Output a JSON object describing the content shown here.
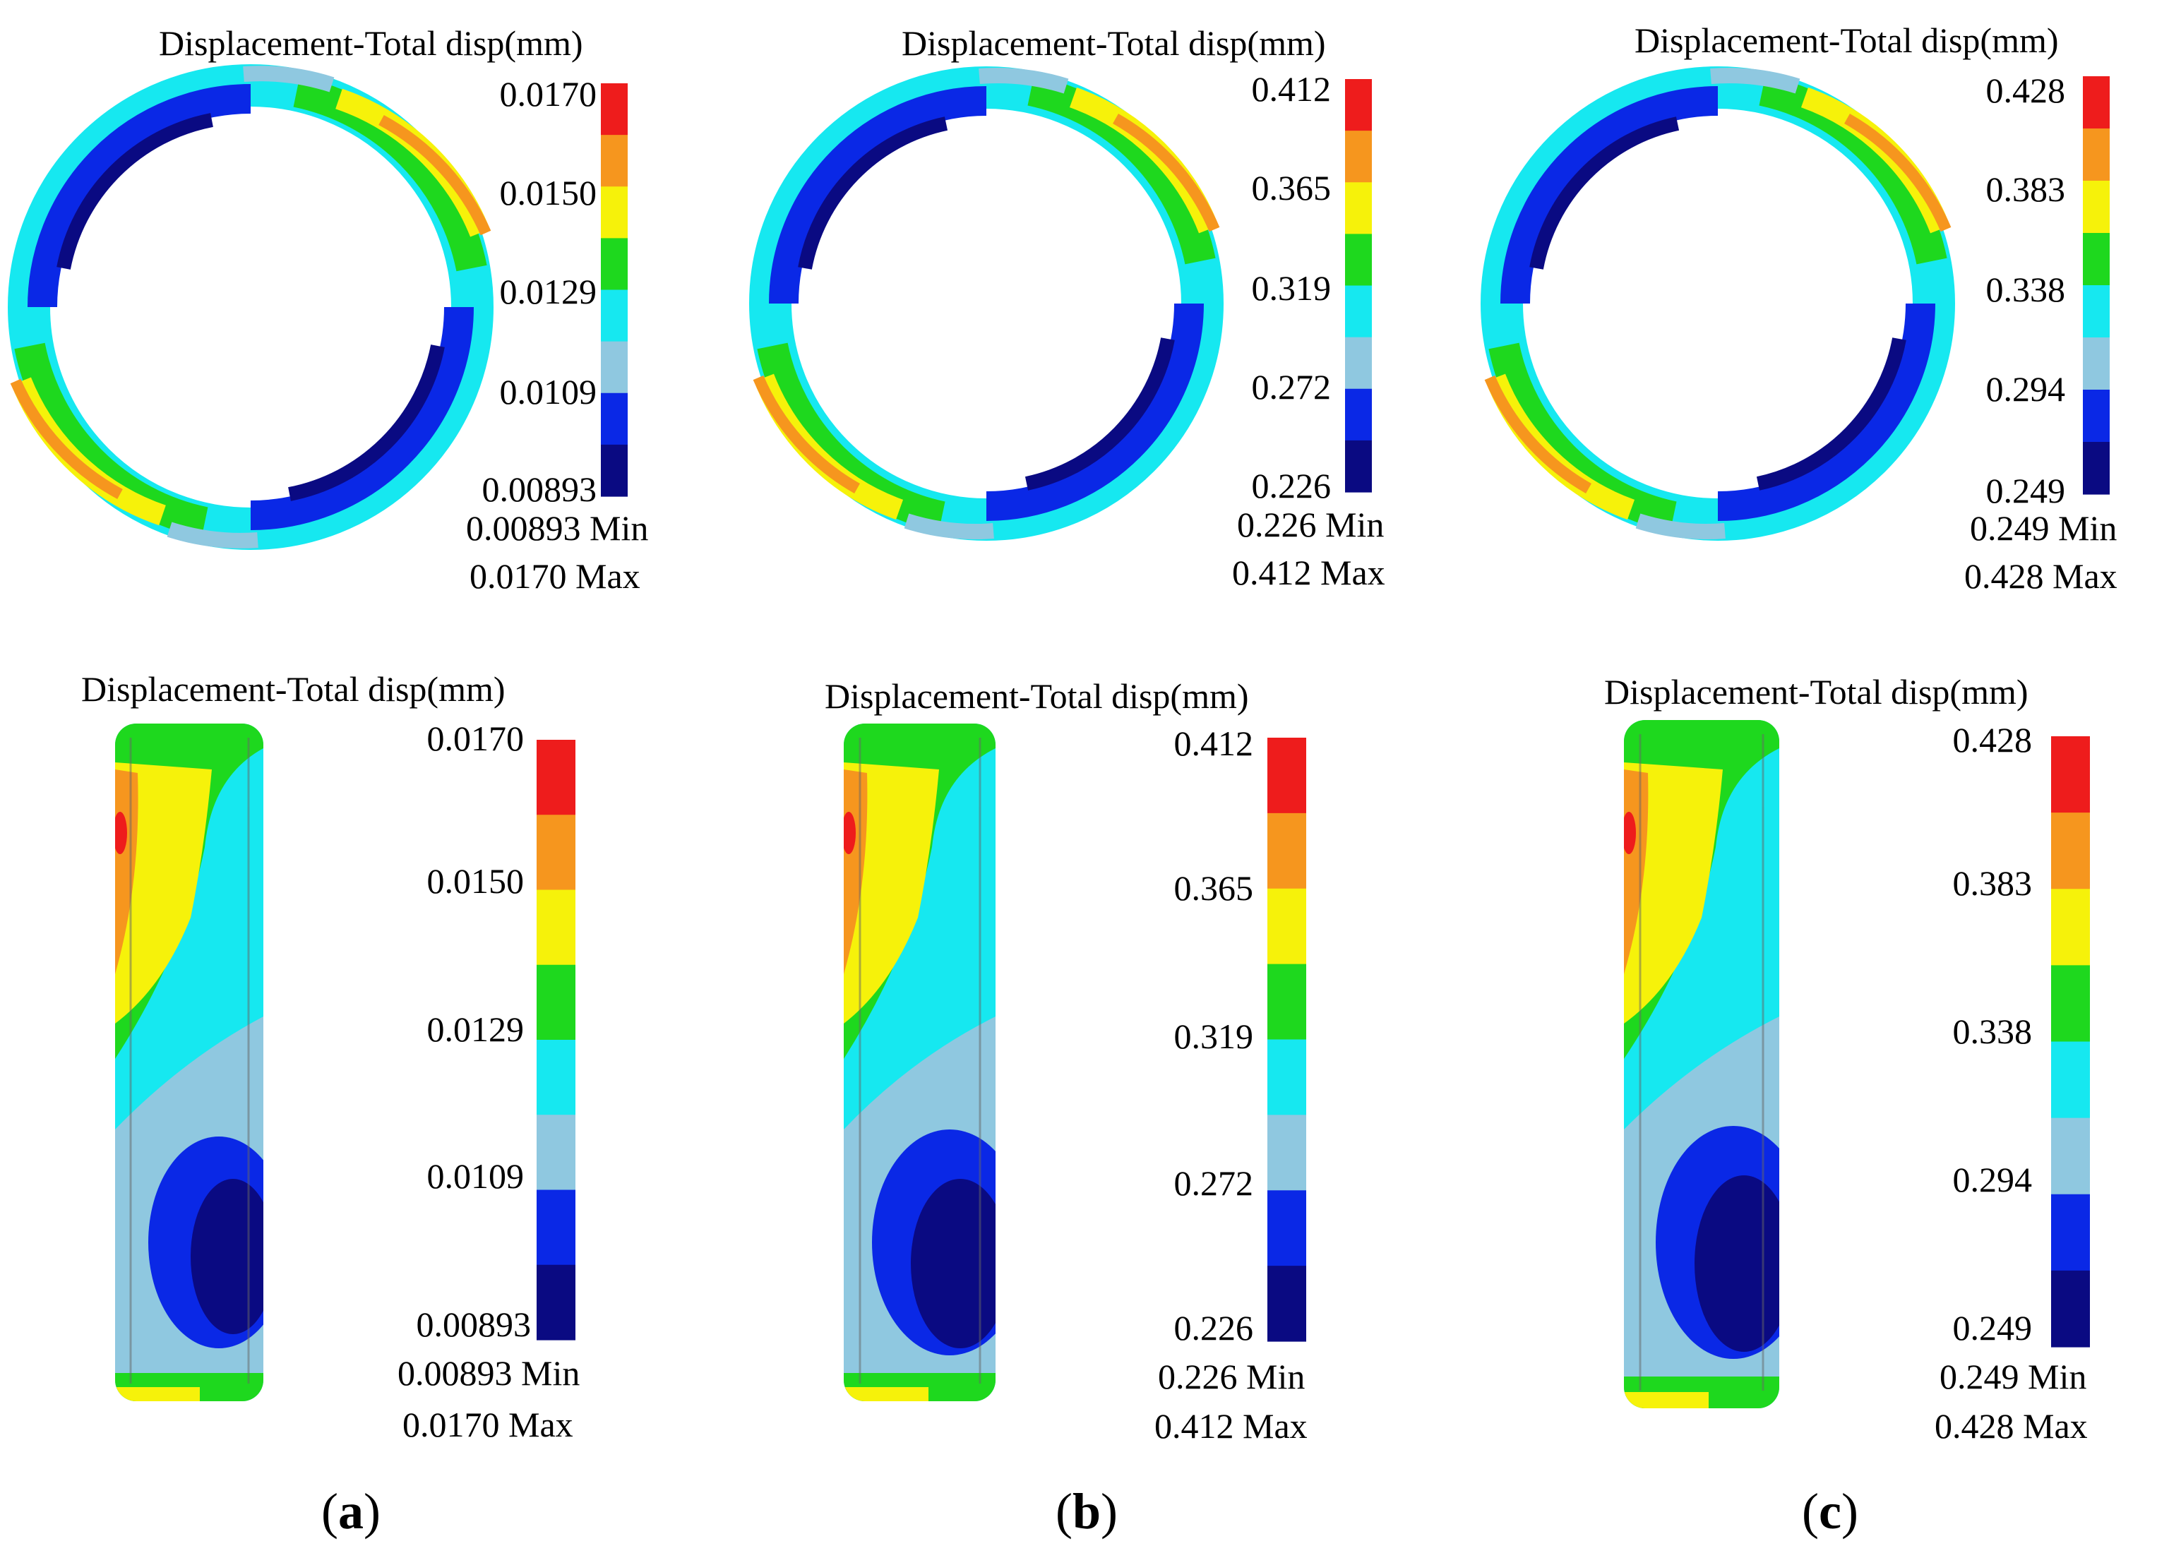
{
  "figure": {
    "background": "#ffffff",
    "colormap": [
      "#0a0a82",
      "#0a28e6",
      "#8fc8e0",
      "#16e8f0",
      "#1ed81e",
      "#f6f20a",
      "#f6961e",
      "#ee1c1c"
    ],
    "panels": [
      {
        "letter": "a",
        "min_label": "0.00893",
        "max_label": "0.0170",
        "ticks": [
          "0.0170",
          "0.0150",
          "0.0129",
          "0.0109",
          "0.00893"
        ],
        "min_caption": "0.00893 Min",
        "max_caption": "0.0170 Max"
      },
      {
        "letter": "b",
        "min_label": "0.226",
        "max_label": "0.412",
        "ticks": [
          "0.412",
          "0.365",
          "0.319",
          "0.272",
          "0.226"
        ],
        "min_caption": "0.226 Min",
        "max_caption": "0.412 Max"
      },
      {
        "letter": "c",
        "min_label": "0.249",
        "max_label": "0.428",
        "ticks": [
          "0.428",
          "0.383",
          "0.338",
          "0.294",
          "0.249"
        ],
        "min_caption": "0.249 Min",
        "max_caption": "0.428 Max"
      }
    ],
    "legend_title": "Displacement-Total disp(mm)",
    "views": [
      "top",
      "side"
    ]
  }
}
